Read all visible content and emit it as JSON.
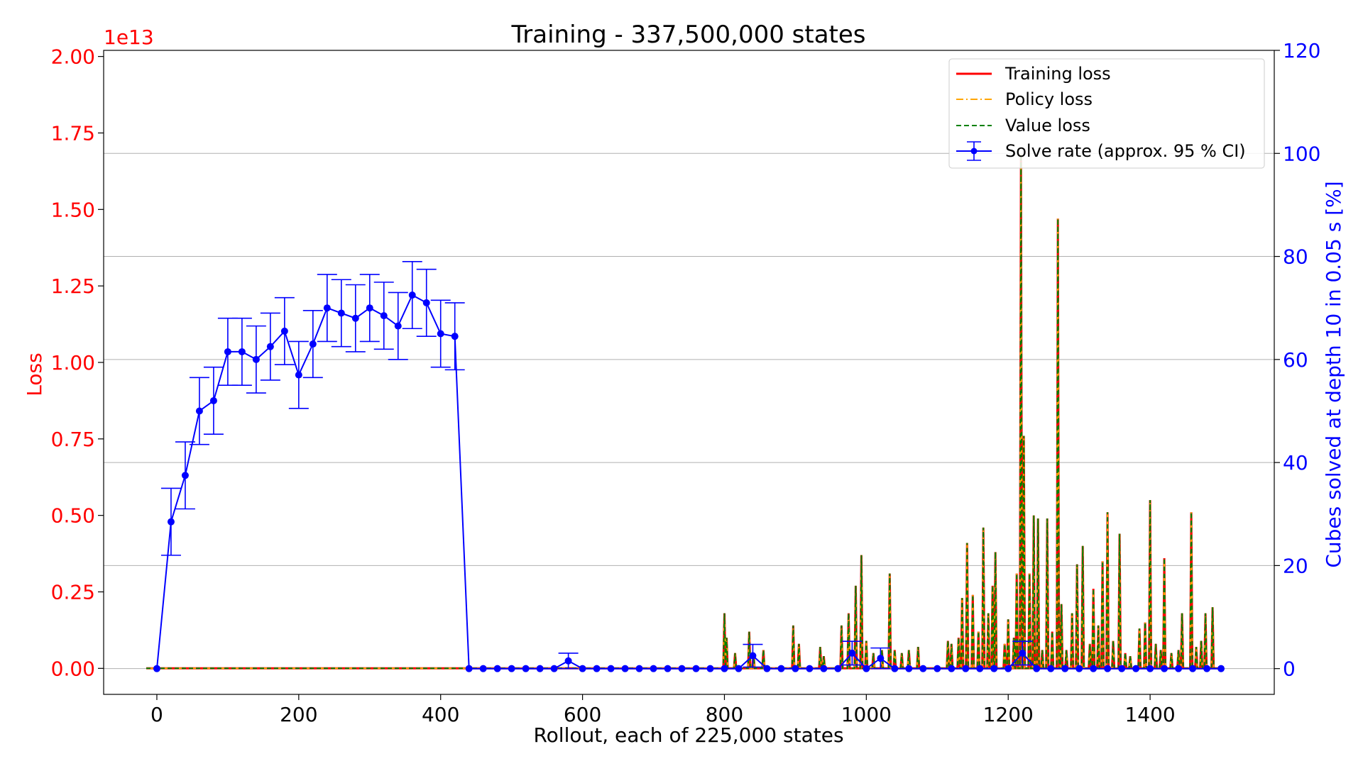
{
  "chart_data": {
    "type": "line",
    "title": "Training - 337,500,000 states",
    "xlabel": "Rollout, each of 225,000 states",
    "ylabel_left": "Loss",
    "ylabel_right": "Cubes solved at depth 10 in 0.05 s [%]",
    "left_axis_scale_label": "1e13",
    "xlim": [
      -75,
      1575
    ],
    "ylim_left": [
      -0.085,
      2.02
    ],
    "ylim_right": [
      -5,
      120
    ],
    "x_ticks": [
      0,
      200,
      400,
      600,
      800,
      1000,
      1200,
      1400
    ],
    "y_ticks_left": [
      "0.00",
      "0.25",
      "0.50",
      "0.75",
      "1.00",
      "1.25",
      "1.50",
      "1.75",
      "2.00"
    ],
    "y_ticks_right": [
      0,
      20,
      40,
      60,
      80,
      100,
      120
    ],
    "grid_right_axis": true,
    "legend_position": "top-right",
    "legend": [
      {
        "label": "Training loss",
        "style": "solid",
        "color": "#ff0000"
      },
      {
        "label": "Policy loss",
        "style": "dashdot",
        "color": "#ffa500"
      },
      {
        "label": "Value loss",
        "style": "dashed",
        "color": "#008000"
      },
      {
        "label": "Solve rate (approx. 95 % CI)",
        "style": "errorbar",
        "color": "#0000ff"
      }
    ],
    "loss_spikes_1e13": [
      [
        800,
        0.18
      ],
      [
        803,
        0.1
      ],
      [
        815,
        0.05
      ],
      [
        835,
        0.12
      ],
      [
        841,
        0.05
      ],
      [
        855,
        0.06
      ],
      [
        897,
        0.14
      ],
      [
        905,
        0.08
      ],
      [
        935,
        0.07
      ],
      [
        940,
        0.04
      ],
      [
        965,
        0.14
      ],
      [
        975,
        0.18
      ],
      [
        985,
        0.27
      ],
      [
        993,
        0.37
      ],
      [
        1000,
        0.09
      ],
      [
        1010,
        0.05
      ],
      [
        1022,
        0.06
      ],
      [
        1033,
        0.31
      ],
      [
        1040,
        0.06
      ],
      [
        1050,
        0.05
      ],
      [
        1060,
        0.06
      ],
      [
        1073,
        0.07
      ],
      [
        1115,
        0.09
      ],
      [
        1120,
        0.08
      ],
      [
        1130,
        0.1
      ],
      [
        1135,
        0.23
      ],
      [
        1142,
        0.41
      ],
      [
        1150,
        0.24
      ],
      [
        1158,
        0.12
      ],
      [
        1165,
        0.46
      ],
      [
        1172,
        0.18
      ],
      [
        1178,
        0.27
      ],
      [
        1182,
        0.38
      ],
      [
        1195,
        0.08
      ],
      [
        1200,
        0.16
      ],
      [
        1208,
        0.1
      ],
      [
        1212,
        0.31
      ],
      [
        1218,
        1.68
      ],
      [
        1222,
        0.76
      ],
      [
        1230,
        0.31
      ],
      [
        1236,
        0.5
      ],
      [
        1242,
        0.49
      ],
      [
        1248,
        0.06
      ],
      [
        1255,
        0.49
      ],
      [
        1262,
        0.12
      ],
      [
        1270,
        1.47
      ],
      [
        1275,
        0.21
      ],
      [
        1282,
        0.06
      ],
      [
        1290,
        0.18
      ],
      [
        1297,
        0.34
      ],
      [
        1305,
        0.4
      ],
      [
        1315,
        0.08
      ],
      [
        1320,
        0.26
      ],
      [
        1327,
        0.14
      ],
      [
        1333,
        0.35
      ],
      [
        1340,
        0.51
      ],
      [
        1348,
        0.09
      ],
      [
        1357,
        0.44
      ],
      [
        1365,
        0.05
      ],
      [
        1372,
        0.04
      ],
      [
        1385,
        0.13
      ],
      [
        1393,
        0.15
      ],
      [
        1400,
        0.55
      ],
      [
        1408,
        0.08
      ],
      [
        1415,
        0.06
      ],
      [
        1420,
        0.36
      ],
      [
        1430,
        0.05
      ],
      [
        1440,
        0.06
      ],
      [
        1445,
        0.18
      ],
      [
        1458,
        0.51
      ],
      [
        1465,
        0.07
      ],
      [
        1472,
        0.09
      ],
      [
        1478,
        0.18
      ],
      [
        1488,
        0.2
      ]
    ],
    "solve_rate": {
      "x": [
        0,
        20,
        40,
        60,
        80,
        100,
        120,
        140,
        160,
        180,
        200,
        220,
        240,
        260,
        280,
        300,
        320,
        340,
        360,
        380,
        400,
        420,
        440,
        460,
        480,
        500,
        520,
        540,
        560,
        580,
        600,
        620,
        640,
        660,
        680,
        700,
        720,
        740,
        760,
        780,
        800,
        820,
        840,
        860,
        880,
        900,
        920,
        940,
        960,
        980,
        1000,
        1020,
        1040,
        1060,
        1080,
        1100,
        1120,
        1140,
        1160,
        1180,
        1200,
        1220,
        1240,
        1260,
        1280,
        1300,
        1320,
        1340,
        1360,
        1380,
        1400,
        1420,
        1440,
        1460,
        1480,
        1500
      ],
      "y": [
        0,
        28.5,
        37.5,
        50,
        52,
        61.5,
        61.5,
        60,
        62.5,
        65.5,
        57,
        63,
        70,
        69,
        68,
        70,
        68.5,
        66.5,
        72.5,
        71,
        65,
        64.5,
        0,
        0,
        0,
        0,
        0,
        0,
        0,
        1.5,
        0,
        0,
        0,
        0,
        0,
        0,
        0,
        0,
        0,
        0,
        0,
        0,
        2.5,
        0,
        0,
        0,
        0,
        0,
        0,
        3,
        0,
        2,
        0,
        0,
        0,
        0,
        0,
        0,
        0,
        0,
        0,
        3,
        0,
        0,
        0,
        0,
        0,
        0,
        0,
        0,
        0,
        0,
        0,
        0,
        0,
        0
      ],
      "ci_half": [
        0,
        6.5,
        6.5,
        6.5,
        6.5,
        6.5,
        6.5,
        6.5,
        6.5,
        6.5,
        6.5,
        6.5,
        6.5,
        6.5,
        6.5,
        6.5,
        6.5,
        6.5,
        6.5,
        6.5,
        6.5,
        6.5,
        0,
        0,
        0,
        0,
        0,
        0,
        0,
        1.5,
        0,
        0,
        0,
        0,
        0,
        0,
        0,
        0,
        0,
        0,
        0,
        0,
        2.2,
        0,
        0,
        0,
        0,
        0,
        0,
        2.3,
        0,
        2,
        0,
        0,
        0,
        0,
        0,
        0,
        0,
        0,
        0,
        2.3,
        0,
        0,
        0,
        0,
        0,
        0,
        0,
        0,
        0,
        0,
        0,
        0,
        0,
        0
      ]
    },
    "colors": {
      "training": "#ff0000",
      "policy": "#ffa500",
      "value": "#008000",
      "solve": "#0000ff",
      "grid": "#b0b0b0",
      "axis": "#000000"
    }
  }
}
